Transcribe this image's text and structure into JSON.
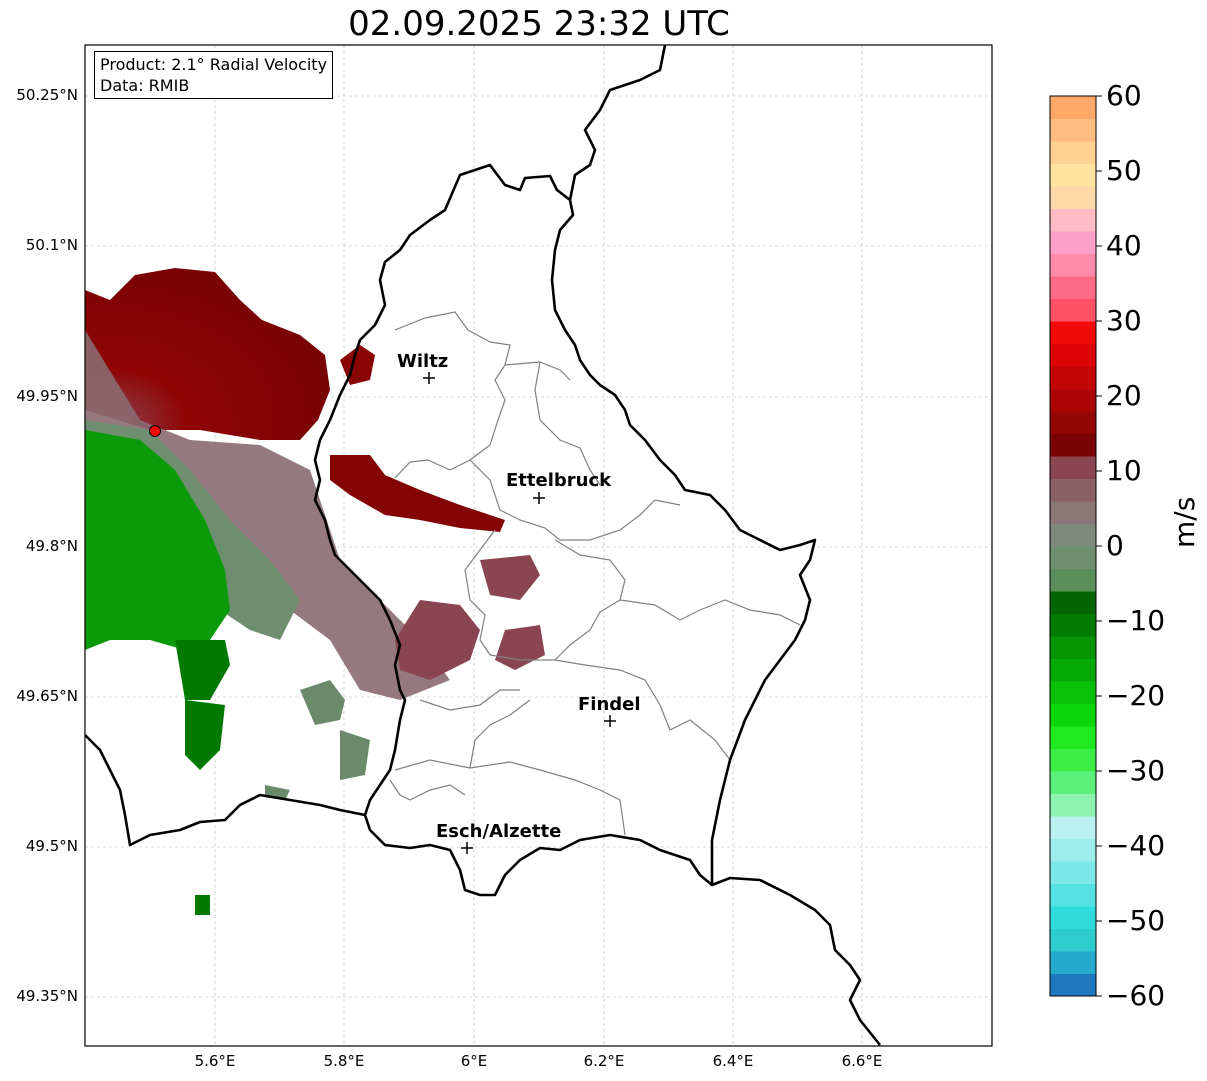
{
  "title": "02.09.2025 23:32 UTC",
  "info_box": {
    "product": "Product: 2.1° Radial Velocity",
    "data_source": "Data: RMIB"
  },
  "lat_labels": [
    "50.25°N",
    "50.1°N",
    "49.95°N",
    "49.8°N",
    "49.65°N",
    "49.5°N",
    "49.35°N"
  ],
  "lon_labels": [
    "5.6°E",
    "5.8°E",
    "6°E",
    "6.2°E",
    "6.4°E",
    "6.6°E"
  ],
  "cities": [
    {
      "name": "Wiltz"
    },
    {
      "name": "Ettelbruck"
    },
    {
      "name": "Findel"
    },
    {
      "name": "Esch/Alzette"
    }
  ],
  "colorbar": {
    "label": "m/s",
    "ticks": [
      "60",
      "50",
      "40",
      "30",
      "20",
      "10",
      "0",
      "−10",
      "−20",
      "−30",
      "−40",
      "−50",
      "−60"
    ],
    "min": -60,
    "max": 60,
    "colors": [
      "#1f78c0",
      "#26aacb",
      "#2ccccf",
      "#2fdcdc",
      "#56e2e2",
      "#7ce8e8",
      "#9eeded",
      "#b9f1f1",
      "#8ef4b0",
      "#5cf07c",
      "#3ced45",
      "#1fea1f",
      "#0ad70a",
      "#08c108",
      "#06aa06",
      "#049404",
      "#037a03",
      "#026402",
      "#5a8e5a",
      "#6f8e6f",
      "#7d8a7a",
      "#8a7676",
      "#8a5f68",
      "#8a4650",
      "#7a0303",
      "#940505",
      "#ad0505",
      "#c40505",
      "#dc0404",
      "#f20a0a",
      "#ff5068",
      "#ff6a86",
      "#ff8aaa",
      "#ffa0c8",
      "#ffbcc4",
      "#ffd8a8",
      "#ffe4a0",
      "#ffd090",
      "#ffbb80",
      "#ffa868"
    ]
  },
  "radar_site": {
    "label": ""
  },
  "colors": {
    "border": "#000000",
    "canton_lines": "#808080",
    "grid": "#b4b4b4",
    "radar_marker": "#ff0000"
  }
}
